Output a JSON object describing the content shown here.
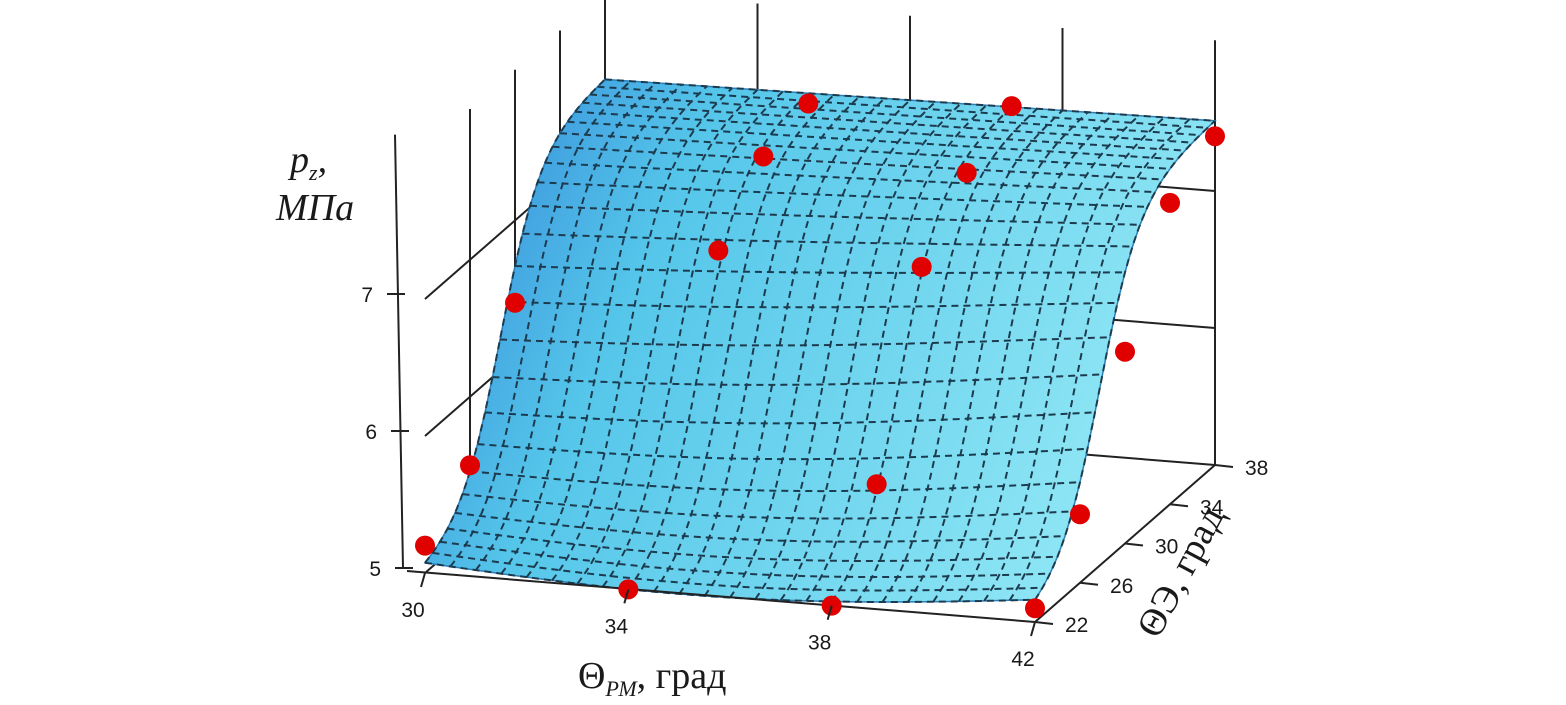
{
  "chart_data": {
    "type": "surface",
    "z_label_top": "p",
    "z_label_sub": "z",
    "z_label_comma": ",",
    "z_label_unit": "МПа",
    "x_label_main": "Θ",
    "x_label_sub": "РМ",
    "x_label_rest": ", град",
    "y_label_main": "Θ",
    "y_label_rest": "Э, град",
    "x_ticks": [
      "30",
      "34",
      "38",
      "42"
    ],
    "y_ticks": [
      "22",
      "26",
      "30",
      "34",
      "38"
    ],
    "z_ticks": [
      "5",
      "6",
      "7"
    ],
    "x_range": [
      30,
      42
    ],
    "y_range": [
      22,
      38
    ],
    "z_range": [
      5,
      7.5
    ],
    "surface_color": "#5ad0ea",
    "grid_line_style": "dashed",
    "points_color": "#e00000",
    "points": [
      {
        "x": 30,
        "y": 22,
        "z": 5.2
      },
      {
        "x": 34,
        "y": 22,
        "z": 5.0
      },
      {
        "x": 38,
        "y": 22,
        "z": 5.0
      },
      {
        "x": 42,
        "y": 22,
        "z": 5.1
      },
      {
        "x": 30,
        "y": 26,
        "z": 5.5
      },
      {
        "x": 42,
        "y": 26,
        "z": 5.5
      },
      {
        "x": 30,
        "y": 30,
        "z": 6.4
      },
      {
        "x": 34,
        "y": 30,
        "z": 6.9
      },
      {
        "x": 38,
        "y": 30,
        "z": 6.9
      },
      {
        "x": 42,
        "y": 30,
        "z": 6.4
      },
      {
        "x": 38,
        "y": 26,
        "z": 5.6
      },
      {
        "x": 34,
        "y": 34,
        "z": 7.3
      },
      {
        "x": 38,
        "y": 34,
        "z": 7.3
      },
      {
        "x": 42,
        "y": 34,
        "z": 7.2
      },
      {
        "x": 34,
        "y": 38,
        "z": 7.4
      },
      {
        "x": 38,
        "y": 38,
        "z": 7.5
      },
      {
        "x": 42,
        "y": 38,
        "z": 7.4
      }
    ]
  }
}
